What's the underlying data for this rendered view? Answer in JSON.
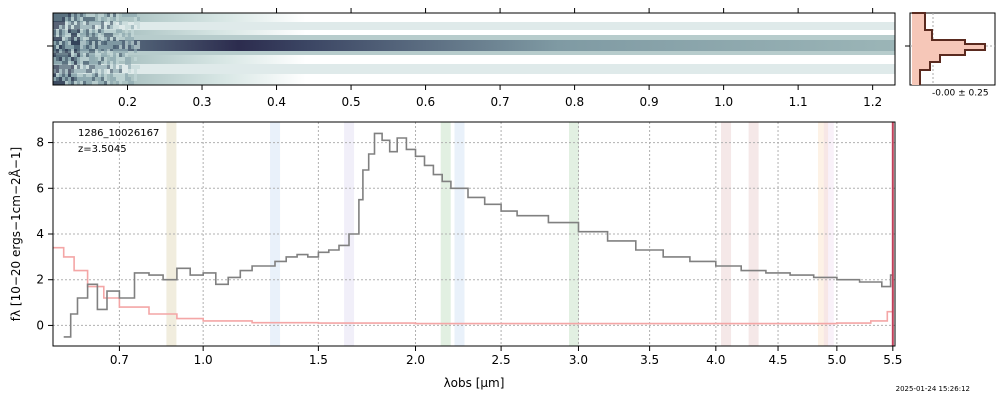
{
  "figure": {
    "object_id": "1286_10026167",
    "redshift_label": "z=3.5045",
    "timestamp": "2025-01-24 15:26:12"
  },
  "twod_panel": {
    "wave_ticks": [
      "0.2",
      "0.3",
      "0.4",
      "0.5",
      "0.6",
      "0.7",
      "0.8",
      "0.9",
      "1.0",
      "1.1",
      "1.2"
    ],
    "wave_tick_values": [
      0.2,
      0.3,
      0.4,
      0.5,
      0.6,
      0.7,
      0.8,
      0.9,
      1.0,
      1.1,
      1.2
    ],
    "colormap": [
      "#ffffff",
      "#cfe0e0",
      "#8fa9b0",
      "#2c2c4e"
    ]
  },
  "profile_panel": {
    "label": "-0.00 ± 0.25",
    "fill_color": "#f6c7b8",
    "line_color": "#5a2a1f"
  },
  "chart_data": {
    "type": "line",
    "xlabel": "λobs [μm]",
    "ylabel": "fλ [10−20 ergs−1cm−2Å−1]",
    "xscale": "sqrt",
    "xlim": [
      0.5,
      5.52
    ],
    "ylim": [
      -0.9,
      8.9
    ],
    "x_ticks": [
      0.7,
      1.0,
      1.5,
      2.0,
      2.5,
      3.0,
      3.5,
      4.0,
      4.5,
      5.0,
      5.5
    ],
    "x_tick_labels": [
      "0.7",
      "1.0",
      "1.5",
      "2.0",
      "2.5",
      "3.0",
      "3.5",
      "4.0",
      "4.5",
      "5.0",
      "5.5"
    ],
    "y_ticks": [
      0,
      2,
      4,
      6,
      8
    ],
    "y_tick_labels": [
      "0",
      "2",
      "4",
      "6",
      "8"
    ],
    "grid": true,
    "spectrum": {
      "color": "#808080",
      "x": [
        0.53,
        0.55,
        0.57,
        0.6,
        0.63,
        0.66,
        0.7,
        0.75,
        0.8,
        0.85,
        0.9,
        0.95,
        1.0,
        1.05,
        1.1,
        1.15,
        1.2,
        1.25,
        1.3,
        1.35,
        1.4,
        1.45,
        1.5,
        1.55,
        1.6,
        1.65,
        1.7,
        1.72,
        1.75,
        1.78,
        1.82,
        1.86,
        1.9,
        1.95,
        2.0,
        2.05,
        2.1,
        2.15,
        2.2,
        2.3,
        2.4,
        2.5,
        2.6,
        2.8,
        3.0,
        3.2,
        3.4,
        3.6,
        3.8,
        4.0,
        4.2,
        4.4,
        4.6,
        4.8,
        5.0,
        5.2,
        5.4,
        5.48,
        5.5
      ],
      "y": [
        -0.5,
        0.5,
        1.2,
        1.8,
        0.7,
        1.5,
        1.2,
        2.3,
        2.2,
        2.0,
        2.5,
        2.2,
        2.3,
        1.8,
        2.1,
        2.4,
        2.6,
        2.6,
        2.8,
        3.0,
        3.1,
        3.0,
        3.2,
        3.3,
        3.5,
        4.0,
        5.5,
        6.8,
        7.5,
        8.4,
        8.1,
        7.6,
        8.2,
        7.7,
        7.4,
        7.0,
        6.6,
        6.3,
        6.0,
        5.6,
        5.3,
        5.0,
        4.8,
        4.5,
        4.1,
        3.7,
        3.3,
        3.0,
        2.8,
        2.6,
        2.4,
        2.3,
        2.2,
        2.1,
        2.0,
        1.9,
        1.7,
        2.2,
        1.0
      ]
    },
    "error": {
      "color": "#f4a6a6",
      "x": [
        0.5,
        0.53,
        0.56,
        0.6,
        0.65,
        0.7,
        0.8,
        0.9,
        1.0,
        1.2,
        1.5,
        2.0,
        3.0,
        4.0,
        4.5,
        5.0,
        5.3,
        5.45,
        5.5
      ],
      "y": [
        3.4,
        3.0,
        2.4,
        1.7,
        1.2,
        0.8,
        0.5,
        0.3,
        0.2,
        0.12,
        0.1,
        0.08,
        0.08,
        0.08,
        0.08,
        0.1,
        0.2,
        0.6,
        1.5
      ]
    },
    "line_bands": [
      {
        "x": 0.88,
        "color": "#c9b77a"
      },
      {
        "x": 1.3,
        "color": "#a8c8ec"
      },
      {
        "x": 1.65,
        "color": "#c6c0e6"
      },
      {
        "x": 2.17,
        "color": "#8cc48c"
      },
      {
        "x": 2.25,
        "color": "#a8c8ec"
      },
      {
        "x": 2.97,
        "color": "#8cc48c"
      },
      {
        "x": 4.08,
        "color": "#d9a3a3"
      },
      {
        "x": 4.3,
        "color": "#d9a3a3"
      },
      {
        "x": 4.88,
        "color": "#f7cc9a"
      },
      {
        "x": 4.93,
        "color": "#e9c6e6"
      }
    ]
  }
}
